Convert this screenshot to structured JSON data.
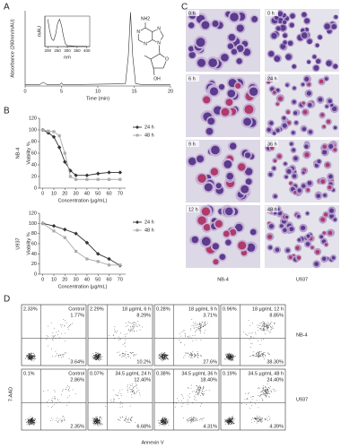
{
  "panel_labels": [
    "A",
    "B",
    "C",
    "D"
  ],
  "chart_data": [
    {
      "type": "line",
      "xlabel": "Time (min)",
      "ylabel": "Absorbance (260nm/mAU)",
      "x": [
        0,
        2,
        2.5,
        3,
        4.8,
        5,
        5.2,
        8,
        13.8,
        14.2,
        14.5,
        14.8,
        15.2,
        16,
        20
      ],
      "values": [
        2,
        2,
        5,
        2,
        2,
        4,
        2,
        2,
        3,
        40,
        98,
        40,
        3,
        2,
        2
      ],
      "color": "#333333",
      "xlim": [
        0,
        20
      ],
      "xticks": [
        0,
        5,
        10,
        15,
        20
      ],
      "ylim": [
        0,
        100
      ]
    },
    {
      "type": "line",
      "xlabel": "nm",
      "ylabel": "mAU",
      "x": [
        200,
        210,
        220,
        230,
        240,
        250,
        260,
        270,
        280,
        290,
        300,
        350,
        400
      ],
      "values": [
        90,
        50,
        25,
        20,
        40,
        75,
        90,
        70,
        35,
        10,
        3,
        1,
        1
      ],
      "color": "#333333",
      "xlim": [
        185,
        415
      ],
      "xticks": [
        200,
        250,
        300,
        350,
        400
      ],
      "ylim": [
        0,
        100
      ]
    },
    {
      "type": "line",
      "label": "NB-4",
      "xlabel": "Concentration (µg/mL)",
      "ylabel": "Viability %",
      "x": [
        0,
        5,
        10,
        15,
        20,
        25,
        30,
        40,
        50,
        60,
        70
      ],
      "series": [
        {
          "name": "24 h",
          "color": "#333333",
          "marker": "diamond",
          "values": [
            100,
            95,
            88,
            70,
            45,
            30,
            22,
            22,
            25,
            27,
            27
          ]
        },
        {
          "name": "48 h",
          "color": "#aaaaaa",
          "marker": "square",
          "values": [
            100,
            98,
            97,
            90,
            60,
            20,
            15,
            15,
            15,
            15,
            15
          ]
        }
      ],
      "xlim": [
        -3,
        75
      ],
      "xticks": [
        0,
        10,
        20,
        30,
        40,
        50,
        60,
        70
      ],
      "ylim": [
        0,
        120
      ],
      "yticks": [
        0,
        20,
        40,
        60,
        80,
        100,
        120
      ],
      "legend": "right"
    },
    {
      "type": "line",
      "label": "U937",
      "xlabel": "Concentration (µg/mL)",
      "ylabel": "Viability %",
      "x": [
        0,
        10,
        20,
        30,
        40,
        50,
        60,
        70
      ],
      "series": [
        {
          "name": "24 h",
          "color": "#333333",
          "marker": "diamond",
          "values": [
            100,
            95,
            88,
            80,
            62,
            40,
            30,
            17
          ]
        },
        {
          "name": "48 h",
          "color": "#aaaaaa",
          "marker": "square",
          "values": [
            100,
            85,
            72,
            45,
            30,
            25,
            18,
            18
          ]
        }
      ],
      "xlim": [
        -3,
        75
      ],
      "xticks": [
        0,
        10,
        20,
        30,
        40,
        50,
        60,
        70
      ],
      "ylim": [
        0,
        120
      ],
      "yticks": [
        0,
        20,
        40,
        60,
        80,
        100,
        120
      ],
      "legend": "right"
    }
  ],
  "structure_labels": [
    "NH2",
    "N",
    "N",
    "N",
    "N",
    "O",
    "OH"
  ],
  "micrographs": {
    "columns": [
      {
        "label": "NB-4",
        "panels": [
          "0 h",
          "6 h",
          "9 h",
          "12 h"
        ]
      },
      {
        "label": "U937",
        "panels": [
          "0 h",
          "24 h",
          "36 h",
          "48 h"
        ]
      }
    ]
  },
  "flow_cytometry": {
    "ylabel": "7-AAD",
    "xlabel": "Annexin V",
    "rows": [
      {
        "label": "NB-4",
        "plots": [
          {
            "title": "Control",
            "ul": "2.33%",
            "ur": "1.77%",
            "lr": "3.64%"
          },
          {
            "title": "18 µg/mL 6 h",
            "ul": "2.29%",
            "ur": "8.29%",
            "lr": "10.2%"
          },
          {
            "title": "18 µg/mL 9 h",
            "ul": "0.28%",
            "ur": "3.71%",
            "lr": "27.6%"
          },
          {
            "title": "18 µg/mL 12 h",
            "ul": "0.96%",
            "ur": "8.85%",
            "lr": "38.30%"
          }
        ]
      },
      {
        "label": "U937",
        "plots": [
          {
            "title": "Control",
            "ul": "0.1%",
            "ur": "2.86%",
            "lr": "2.35%"
          },
          {
            "title": "34.5 µg/mL 24 h",
            "ul": "0.07%",
            "ur": "12.40%",
            "lr": "6.68%"
          },
          {
            "title": "34.5 µg/mL 36 h",
            "ul": "0.38%",
            "ur": "18.40%",
            "lr": "4.31%"
          },
          {
            "title": "34.5 µg/mL 48 h",
            "ul": "0.19%",
            "ur": "24.40%",
            "lr": "4.39%"
          }
        ]
      }
    ]
  }
}
